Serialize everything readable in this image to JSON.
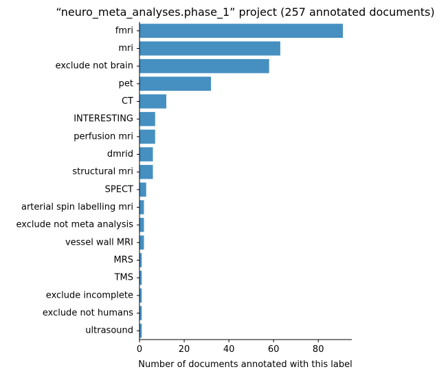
{
  "chart_data": {
    "type": "bar",
    "orientation": "horizontal",
    "title": "“neuro_meta_analyses.phase_1” project (257 annotated documents)",
    "xlabel": "Number of documents annotated with this label",
    "ylabel": "",
    "xlim": [
      0,
      95
    ],
    "xticks": [
      0,
      20,
      40,
      60,
      80
    ],
    "grid": false,
    "bar_color": "#4690c1",
    "categories": [
      "fmri",
      "mri",
      "exclude not brain",
      "pet",
      "CT",
      "INTERESTING",
      "perfusion mri",
      "dmrid",
      "structural mri",
      "SPECT",
      "arterial spin labelling mri",
      "exclude not meta analysis",
      "vessel wall MRI",
      "MRS",
      "TMS",
      "exclude incomplete",
      "exclude not humans",
      "ultrasound"
    ],
    "values": [
      91,
      63,
      58,
      32,
      12,
      7,
      7,
      6,
      6,
      3,
      2,
      2,
      2,
      1,
      1,
      1,
      1,
      1
    ]
  }
}
